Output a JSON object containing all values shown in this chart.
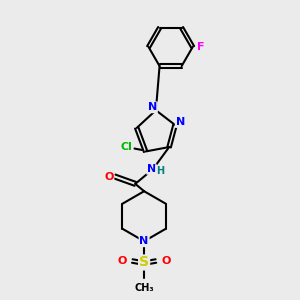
{
  "background_color": "#ebebeb",
  "bond_color": "#000000",
  "atom_colors": {
    "N": "#0000ff",
    "O": "#ff0000",
    "S": "#cccc00",
    "Cl": "#00bb00",
    "F": "#ff00ff",
    "H": "#008080",
    "C": "#000000"
  },
  "font_size": 8,
  "figure_width": 3.0,
  "figure_height": 3.0,
  "dpi": 100
}
